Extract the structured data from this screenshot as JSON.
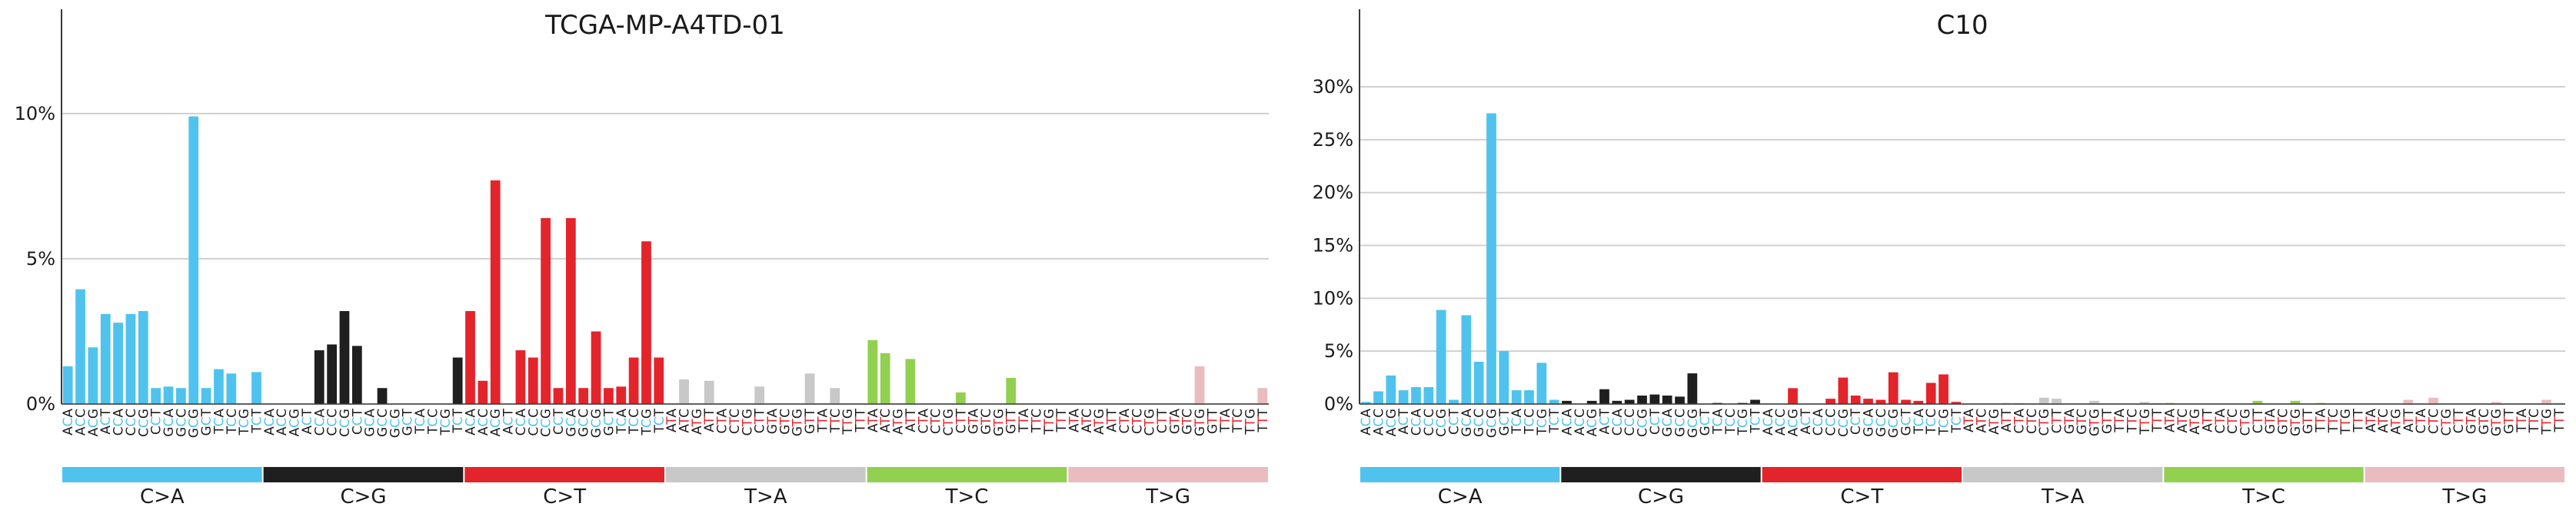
{
  "chart_data": [
    {
      "type": "bar",
      "title": "TCGA-MP-A4TD-01",
      "xlabel": "",
      "ylabel": "",
      "ylim": [
        0,
        11
      ],
      "yticks": [
        0,
        5,
        10
      ],
      "ytick_labels": [
        "0%",
        "5%",
        "10%"
      ],
      "grid": true,
      "groups": [
        {
          "label": "C>A",
          "color": "#4fc3ee",
          "mid": "C",
          "contexts": [
            "ACA",
            "ACC",
            "ACG",
            "ACT",
            "CCA",
            "CCC",
            "CCG",
            "CCT",
            "GCA",
            "GCC",
            "GCG",
            "GCT",
            "TCA",
            "TCC",
            "TCG",
            "TCT"
          ],
          "values": [
            1.3,
            3.95,
            1.95,
            3.1,
            2.8,
            3.1,
            3.2,
            0.55,
            0.6,
            0.55,
            9.9,
            0.55,
            1.2,
            1.05,
            0,
            1.1
          ]
        },
        {
          "label": "C>G",
          "color": "#1f1f1f",
          "mid": "C",
          "contexts": [
            "ACA",
            "ACC",
            "ACG",
            "ACT",
            "CCA",
            "CCC",
            "CCG",
            "CCT",
            "GCA",
            "GCC",
            "GCG",
            "GCT",
            "TCA",
            "TCC",
            "TCG",
            "TCT"
          ],
          "values": [
            0,
            0,
            0,
            0,
            1.85,
            2.05,
            3.2,
            2.0,
            0,
            0.55,
            0,
            0,
            0,
            0,
            0,
            1.6
          ]
        },
        {
          "label": "C>T",
          "color": "#e3242b",
          "mid": "C",
          "contexts": [
            "ACA",
            "ACC",
            "ACG",
            "ACT",
            "CCA",
            "CCC",
            "CCG",
            "CCT",
            "GCA",
            "GCC",
            "GCG",
            "GCT",
            "TCA",
            "TCC",
            "TCG",
            "TCT"
          ],
          "values": [
            3.2,
            0.8,
            7.7,
            0,
            1.85,
            1.6,
            6.4,
            0.55,
            6.4,
            0.55,
            2.5,
            0.55,
            0.6,
            1.6,
            5.6,
            1.6
          ]
        },
        {
          "label": "T>A",
          "color": "#c8c8c8",
          "mid": "T",
          "contexts": [
            "ATA",
            "ATC",
            "ATG",
            "ATT",
            "CTA",
            "CTC",
            "CTG",
            "CTT",
            "GTA",
            "GTC",
            "GTG",
            "GTT",
            "TTA",
            "TTC",
            "TTG",
            "TTT"
          ],
          "values": [
            0,
            0.85,
            0,
            0.8,
            0,
            0,
            0,
            0.6,
            0,
            0,
            0,
            1.05,
            0,
            0.55,
            0,
            0
          ]
        },
        {
          "label": "T>C",
          "color": "#92d050",
          "mid": "T",
          "contexts": [
            "ATA",
            "ATC",
            "ATG",
            "ATT",
            "CTA",
            "CTC",
            "CTG",
            "CTT",
            "GTA",
            "GTC",
            "GTG",
            "GTT",
            "TTA",
            "TTC",
            "TTG",
            "TTT"
          ],
          "values": [
            2.2,
            1.75,
            0,
            1.55,
            0,
            0,
            0,
            0.4,
            0,
            0,
            0,
            0.9,
            0,
            0,
            0,
            0
          ]
        },
        {
          "label": "T>G",
          "color": "#eabcc0",
          "mid": "T",
          "contexts": [
            "ATA",
            "ATC",
            "ATG",
            "ATT",
            "CTA",
            "CTC",
            "CTG",
            "CTT",
            "GTA",
            "GTC",
            "GTG",
            "GTT",
            "TTA",
            "TTC",
            "TTG",
            "TTT"
          ],
          "values": [
            0,
            0,
            0,
            0,
            0,
            0,
            0,
            0,
            0,
            0,
            1.3,
            0,
            0,
            0,
            0,
            0.55
          ]
        }
      ]
    },
    {
      "type": "bar",
      "title": "C10",
      "xlabel": "",
      "ylabel": "",
      "ylim": [
        0,
        34
      ],
      "yticks": [
        0,
        5,
        10,
        15,
        20,
        25,
        30
      ],
      "ytick_labels": [
        "0%",
        "5%",
        "10%",
        "15%",
        "20%",
        "25%",
        "30%"
      ],
      "grid": true,
      "groups": [
        {
          "label": "C>A",
          "color": "#4fc3ee",
          "mid": "C",
          "contexts": [
            "ACA",
            "ACC",
            "ACG",
            "ACT",
            "CCA",
            "CCC",
            "CCG",
            "CCT",
            "GCA",
            "GCC",
            "GCG",
            "GCT",
            "TCA",
            "TCC",
            "TCG",
            "TCT"
          ],
          "values": [
            0.2,
            1.2,
            2.7,
            1.3,
            1.6,
            1.6,
            8.9,
            0.4,
            8.4,
            4.0,
            27.5,
            5.0,
            1.3,
            1.3,
            3.9,
            0.4
          ]
        },
        {
          "label": "C>G",
          "color": "#1f1f1f",
          "mid": "C",
          "contexts": [
            "ACA",
            "ACC",
            "ACG",
            "ACT",
            "CCA",
            "CCC",
            "CCG",
            "CCT",
            "GCA",
            "GCC",
            "GCG",
            "GCT",
            "TCA",
            "TCC",
            "TCG",
            "TCT"
          ],
          "values": [
            0.3,
            0,
            0.3,
            1.4,
            0.3,
            0.4,
            0.8,
            0.9,
            0.8,
            0.7,
            2.9,
            0,
            0.1,
            0,
            0.1,
            0.4
          ]
        },
        {
          "label": "C>T",
          "color": "#e3242b",
          "mid": "C",
          "contexts": [
            "ACA",
            "ACC",
            "ACG",
            "ACT",
            "CCA",
            "CCC",
            "CCG",
            "CCT",
            "GCA",
            "GCC",
            "GCG",
            "GCT",
            "TCA",
            "TCC",
            "TCG",
            "TCT"
          ],
          "values": [
            0,
            0,
            1.5,
            0,
            0,
            0.5,
            2.5,
            0.8,
            0.5,
            0.4,
            3.0,
            0.4,
            0.3,
            2.0,
            2.8,
            0.2
          ]
        },
        {
          "label": "T>A",
          "color": "#c8c8c8",
          "mid": "T",
          "contexts": [
            "ATA",
            "ATC",
            "ATG",
            "ATT",
            "CTA",
            "CTC",
            "CTG",
            "CTT",
            "GTA",
            "GTC",
            "GTG",
            "GTT",
            "TTA",
            "TTC",
            "TTG",
            "TTT"
          ],
          "values": [
            0,
            0,
            0,
            0.1,
            0.1,
            0,
            0.6,
            0.5,
            0,
            0,
            0.3,
            0,
            0,
            0,
            0.2,
            0.1
          ]
        },
        {
          "label": "T>C",
          "color": "#92d050",
          "mid": "T",
          "contexts": [
            "ATA",
            "ATC",
            "ATG",
            "ATT",
            "CTA",
            "CTC",
            "CTG",
            "CTT",
            "GTA",
            "GTC",
            "GTG",
            "GTT",
            "TTA",
            "TTC",
            "TTG",
            "TTT"
          ],
          "values": [
            0.1,
            0,
            0,
            0,
            0,
            0,
            0,
            0.3,
            0,
            0,
            0.3,
            0,
            0.1,
            0,
            0,
            0
          ]
        },
        {
          "label": "T>G",
          "color": "#eabcc0",
          "mid": "T",
          "contexts": [
            "ATA",
            "ATC",
            "ATG",
            "ATT",
            "CTA",
            "CTC",
            "CTG",
            "CTT",
            "GTA",
            "GTC",
            "GTG",
            "GTT",
            "TTA",
            "TTC",
            "TTG",
            "TTT"
          ],
          "values": [
            0,
            0,
            0,
            0.4,
            0,
            0.6,
            0,
            0,
            0,
            0,
            0.2,
            0,
            0,
            0,
            0.4,
            0.1
          ]
        }
      ]
    }
  ],
  "colors": {
    "grid": "#d0d0d0",
    "axis": "#3a3a3a",
    "mid_letter_C": "#4fc3ee",
    "mid_letter_T": "#e3242b"
  }
}
